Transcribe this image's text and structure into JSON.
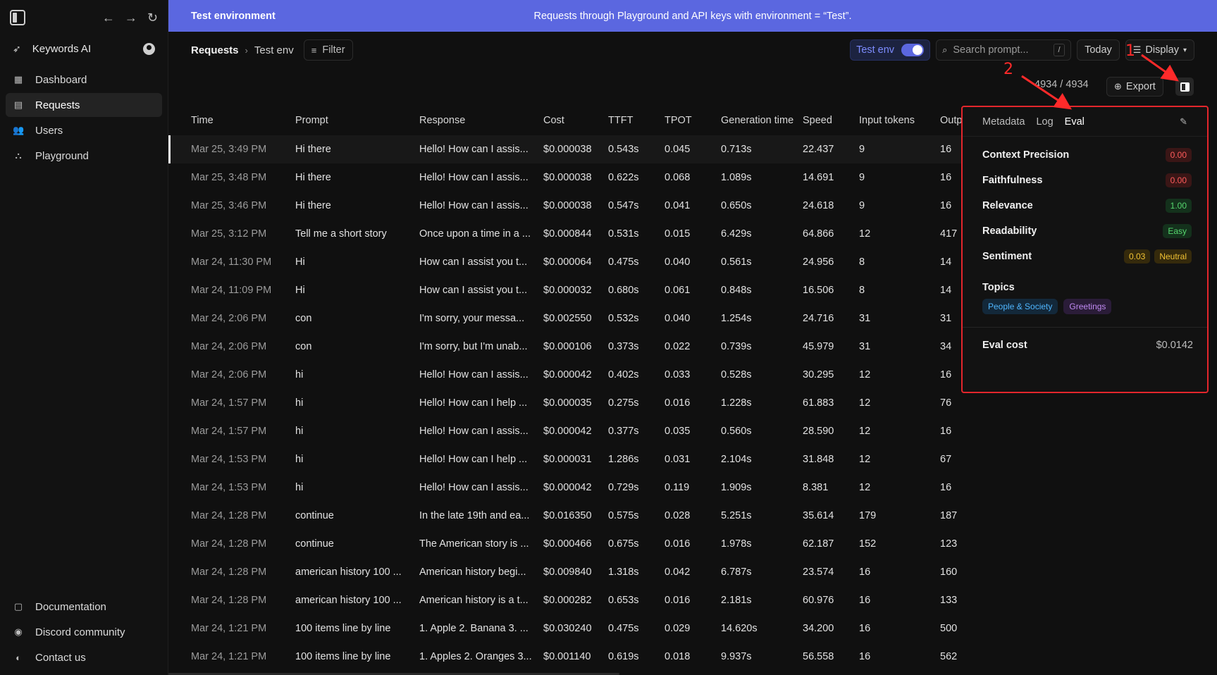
{
  "sidebar": {
    "org_name": "Keywords AI",
    "nav": [
      {
        "label": "Dashboard",
        "icon": "dashboard-icon"
      },
      {
        "label": "Requests",
        "icon": "requests-icon"
      },
      {
        "label": "Users",
        "icon": "users-icon"
      },
      {
        "label": "Playground",
        "icon": "playground-icon"
      }
    ],
    "bottom": [
      {
        "label": "Documentation",
        "icon": "document-icon"
      },
      {
        "label": "Discord community",
        "icon": "discord-icon"
      },
      {
        "label": "Contact us",
        "icon": "contact-icon"
      }
    ]
  },
  "banner": {
    "title": "Test environment",
    "description": "Requests through Playground and API keys with environment = “Test”.",
    "color": "#5b67e0"
  },
  "toolbar": {
    "breadcrumb_root": "Requests",
    "breadcrumb_current": "Test env",
    "filter_label": "Filter",
    "env_label": "Test env",
    "env_enabled": true,
    "search_placeholder": "Search prompt...",
    "search_shortcut": "/",
    "date_label": "Today",
    "display_label": "Display",
    "count_text": "4934 / 4934",
    "export_label": "Export"
  },
  "table": {
    "columns": [
      "Time",
      "Prompt",
      "Response",
      "Cost",
      "TTFT",
      "TPOT",
      "Generation time",
      "Speed",
      "Input tokens",
      "Outp"
    ],
    "rows": [
      [
        "Mar 25, 3:49 PM",
        "Hi there",
        "Hello! How can I assis...",
        "$0.000038",
        "0.543s",
        "0.045",
        "0.713s",
        "22.437",
        "9",
        "16"
      ],
      [
        "Mar 25, 3:48 PM",
        "Hi there",
        "Hello! How can I assis...",
        "$0.000038",
        "0.622s",
        "0.068",
        "1.089s",
        "14.691",
        "9",
        "16"
      ],
      [
        "Mar 25, 3:46 PM",
        "Hi there",
        "Hello! How can I assis...",
        "$0.000038",
        "0.547s",
        "0.041",
        "0.650s",
        "24.618",
        "9",
        "16"
      ],
      [
        "Mar 25, 3:12 PM",
        "Tell me a short story",
        "Once upon a time in a ...",
        "$0.000844",
        "0.531s",
        "0.015",
        "6.429s",
        "64.866",
        "12",
        "417"
      ],
      [
        "Mar 24, 11:30 PM",
        "Hi",
        "How can I assist you t...",
        "$0.000064",
        "0.475s",
        "0.040",
        "0.561s",
        "24.956",
        "8",
        "14"
      ],
      [
        "Mar 24, 11:09 PM",
        "Hi",
        "How can I assist you t...",
        "$0.000032",
        "0.680s",
        "0.061",
        "0.848s",
        "16.506",
        "8",
        "14"
      ],
      [
        "Mar 24, 2:06 PM",
        "con",
        "I'm sorry, your messa...",
        "$0.002550",
        "0.532s",
        "0.040",
        "1.254s",
        "24.716",
        "31",
        "31"
      ],
      [
        "Mar 24, 2:06 PM",
        "con",
        "I'm sorry, but I'm unab...",
        "$0.000106",
        "0.373s",
        "0.022",
        "0.739s",
        "45.979",
        "31",
        "34"
      ],
      [
        "Mar 24, 2:06 PM",
        "hi",
        "Hello! How can I assis...",
        "$0.000042",
        "0.402s",
        "0.033",
        "0.528s",
        "30.295",
        "12",
        "16"
      ],
      [
        "Mar 24, 1:57 PM",
        "hi",
        "Hello! How can I help ...",
        "$0.000035",
        "0.275s",
        "0.016",
        "1.228s",
        "61.883",
        "12",
        "76"
      ],
      [
        "Mar 24, 1:57 PM",
        "hi",
        "Hello! How can I assis...",
        "$0.000042",
        "0.377s",
        "0.035",
        "0.560s",
        "28.590",
        "12",
        "16"
      ],
      [
        "Mar 24, 1:53 PM",
        "hi",
        "Hello! How can I help ...",
        "$0.000031",
        "1.286s",
        "0.031",
        "2.104s",
        "31.848",
        "12",
        "67"
      ],
      [
        "Mar 24, 1:53 PM",
        "hi",
        "Hello! How can I assis...",
        "$0.000042",
        "0.729s",
        "0.119",
        "1.909s",
        "8.381",
        "12",
        "16"
      ],
      [
        "Mar 24, 1:28 PM",
        "continue",
        "In the late 19th and ea...",
        "$0.016350",
        "0.575s",
        "0.028",
        "5.251s",
        "35.614",
        "179",
        "187"
      ],
      [
        "Mar 24, 1:28 PM",
        "continue",
        "The American story is ...",
        "$0.000466",
        "0.675s",
        "0.016",
        "1.978s",
        "62.187",
        "152",
        "123"
      ],
      [
        "Mar 24, 1:28 PM",
        "american history 100 ...",
        "American history begi...",
        "$0.009840",
        "1.318s",
        "0.042",
        "6.787s",
        "23.574",
        "16",
        "160"
      ],
      [
        "Mar 24, 1:28 PM",
        "american history 100 ...",
        "American history is a t...",
        "$0.000282",
        "0.653s",
        "0.016",
        "2.181s",
        "60.976",
        "16",
        "133"
      ],
      [
        "Mar 24, 1:21 PM",
        "100 items line by line",
        "1. Apple 2. Banana 3. ...",
        "$0.030240",
        "0.475s",
        "0.029",
        "14.620s",
        "34.200",
        "16",
        "500"
      ],
      [
        "Mar 24, 1:21 PM",
        "100 items line by line",
        "1. Apples 2. Oranges 3...",
        "$0.001140",
        "0.619s",
        "0.018",
        "9.937s",
        "56.558",
        "16",
        "562"
      ]
    ]
  },
  "panel": {
    "tabs": [
      "Metadata",
      "Log",
      "Eval"
    ],
    "active_tab": "Eval",
    "metrics": [
      {
        "label": "Context Precision",
        "values": [
          {
            "text": "0.00",
            "tone": "red"
          }
        ]
      },
      {
        "label": "Faithfulness",
        "values": [
          {
            "text": "0.00",
            "tone": "red"
          }
        ]
      },
      {
        "label": "Relevance",
        "values": [
          {
            "text": "1.00",
            "tone": "green"
          }
        ]
      },
      {
        "label": "Readability",
        "values": [
          {
            "text": "Easy",
            "tone": "green"
          }
        ]
      },
      {
        "label": "Sentiment",
        "values": [
          {
            "text": "0.03",
            "tone": "yellow"
          },
          {
            "text": "Neutral",
            "tone": "yellow"
          }
        ]
      }
    ],
    "topics_label": "Topics",
    "topics": [
      {
        "text": "People & Society",
        "tone": "blue"
      },
      {
        "text": "Greetings",
        "tone": "purple"
      }
    ],
    "eval_cost_label": "Eval cost",
    "eval_cost_value": "$0.0142"
  },
  "annotations": {
    "marker_1": "1",
    "marker_2": "2",
    "color": "#ff2a2a"
  }
}
